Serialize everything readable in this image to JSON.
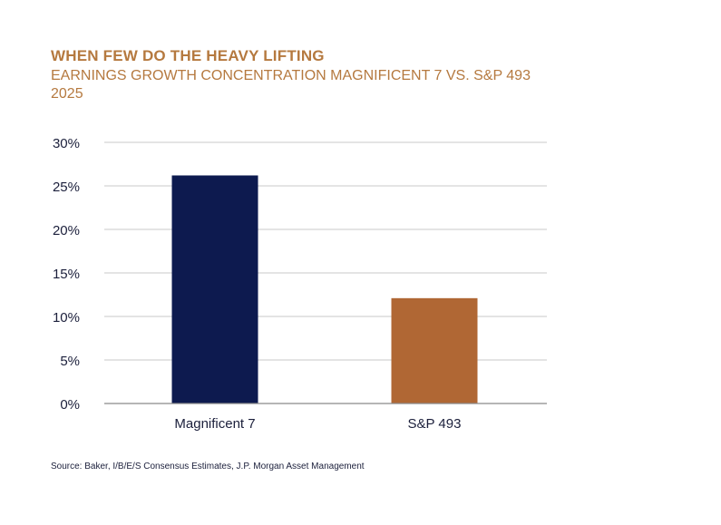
{
  "title": "WHEN FEW DO THE HEAVY LIFTING",
  "subtitle_line1": "EARNINGS GROWTH CONCENTRATION MAGNIFICENT 7 VS. S&P 493",
  "subtitle_line2": "2025",
  "source": "Source: Baker, I/B/E/S Consensus Estimates, J.P. Morgan Asset Management",
  "colors": {
    "title": "#b5793f",
    "grid": "#c9c9c9",
    "axis": "#8a8a8a",
    "text": "#1b1f3b"
  },
  "chart_data": {
    "type": "bar",
    "title": "WHEN FEW DO THE HEAVY LIFTING",
    "subtitle": "EARNINGS GROWTH CONCENTRATION MAGNIFICENT 7 VS. S&P 493 2025",
    "categories": [
      "Magnificent 7",
      "S&P 493"
    ],
    "values": [
      26.2,
      12.1
    ],
    "bar_colors": [
      "#0d1a4f",
      "#b06734"
    ],
    "unit": "%",
    "ylim": [
      0,
      30
    ],
    "yticks": [
      0,
      5,
      10,
      15,
      20,
      25,
      30
    ],
    "ytick_labels": [
      "0%",
      "5%",
      "10%",
      "15%",
      "20%",
      "25%",
      "30%"
    ],
    "grid": true,
    "legend": "none"
  }
}
